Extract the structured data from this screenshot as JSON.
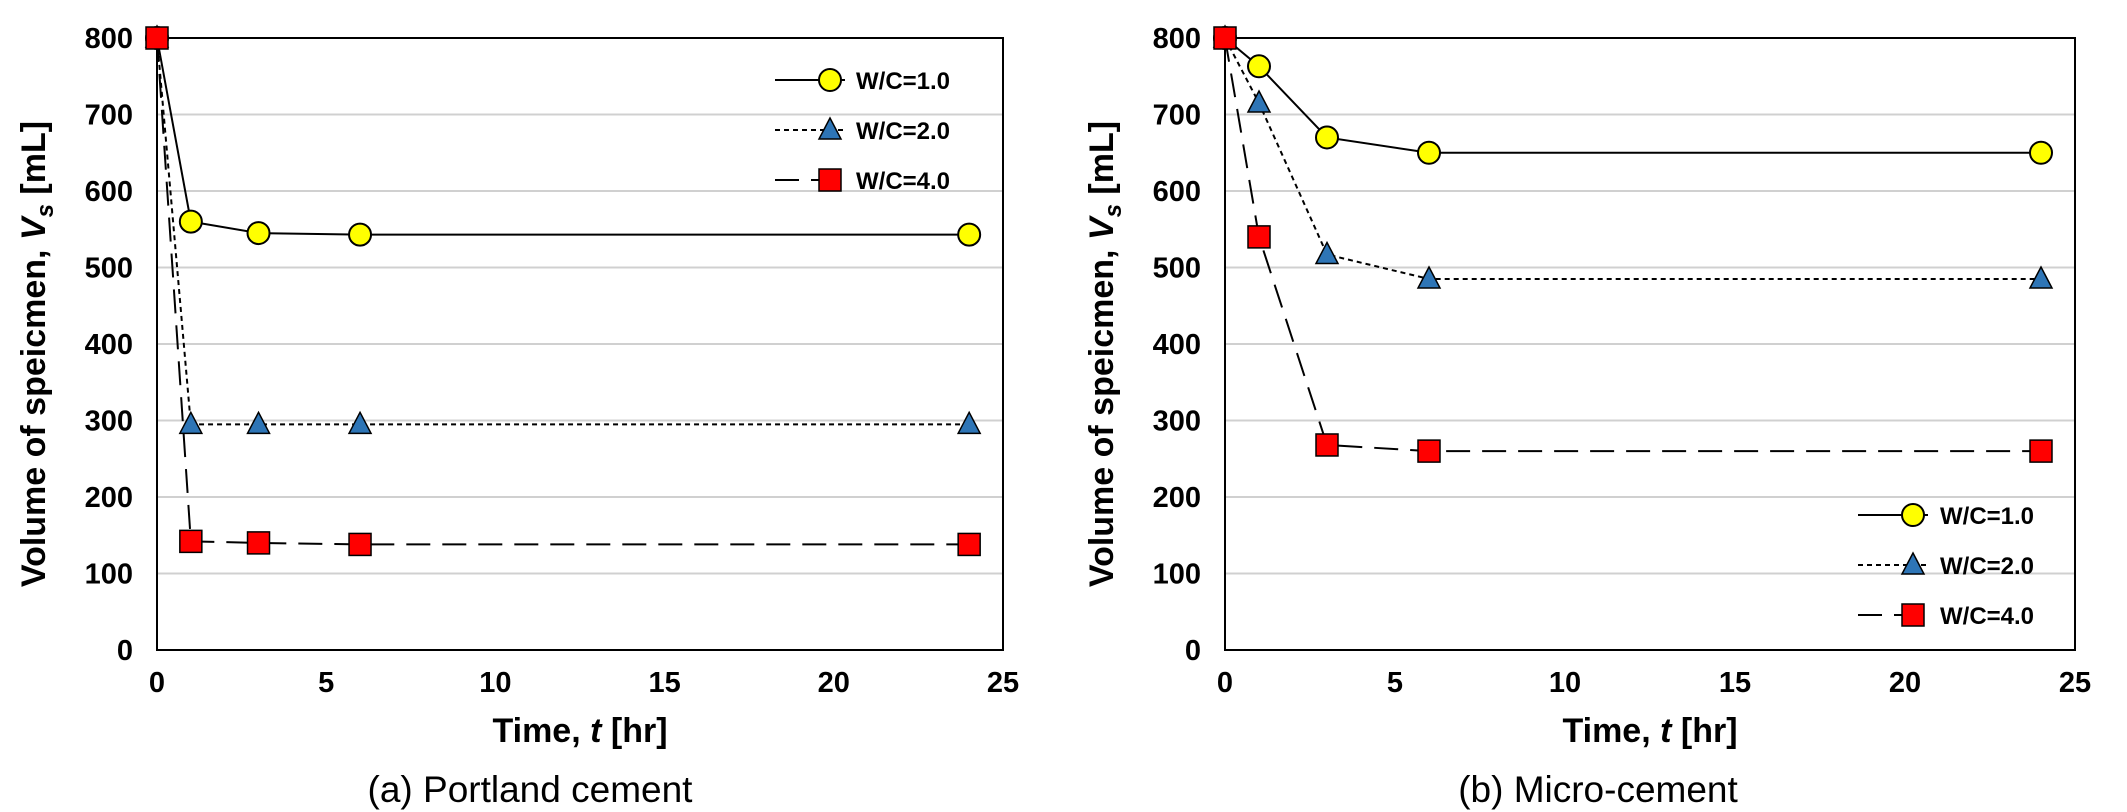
{
  "chart_data": [
    {
      "type": "line",
      "caption": "(a) Portland cement",
      "xlabel_prefix": "Time, ",
      "xlabel_var": "t",
      "xlabel_suffix": " [hr]",
      "ylabel_prefix": "Volume of speicmen, ",
      "ylabel_var": "V",
      "ylabel_sub": "s",
      "ylabel_suffix": " [mL]",
      "xlim": [
        0,
        25
      ],
      "ylim": [
        0,
        800
      ],
      "xticks": [
        0,
        5,
        10,
        15,
        20,
        25
      ],
      "yticks": [
        0,
        100,
        200,
        300,
        400,
        500,
        600,
        700,
        800
      ],
      "grid": "horizontal",
      "legend_position": "top-right",
      "series": [
        {
          "name": "W/C=1.0",
          "marker": "circle",
          "color": "#ffff00",
          "line": "solid",
          "x": [
            0,
            1,
            3,
            6,
            24
          ],
          "y": [
            800,
            560,
            545,
            543,
            543
          ]
        },
        {
          "name": "W/C=2.0",
          "marker": "triangle",
          "color": "#2e75b6",
          "line": "dotted",
          "x": [
            0,
            1,
            3,
            6,
            24
          ],
          "y": [
            800,
            295,
            295,
            295,
            295
          ]
        },
        {
          "name": "W/C=4.0",
          "marker": "square",
          "color": "#ff0000",
          "line": "dashed",
          "x": [
            0,
            1,
            3,
            6,
            24
          ],
          "y": [
            800,
            142,
            140,
            138,
            138
          ]
        }
      ]
    },
    {
      "type": "line",
      "caption": "(b) Micro-cement",
      "xlabel_prefix": "Time, ",
      "xlabel_var": "t",
      "xlabel_suffix": " [hr]",
      "ylabel_prefix": "Volume of speicmen, ",
      "ylabel_var": "V",
      "ylabel_sub": "s",
      "ylabel_suffix": " [mL]",
      "xlim": [
        0,
        25
      ],
      "ylim": [
        0,
        800
      ],
      "xticks": [
        0,
        5,
        10,
        15,
        20,
        25
      ],
      "yticks": [
        0,
        100,
        200,
        300,
        400,
        500,
        600,
        700,
        800
      ],
      "grid": "horizontal",
      "legend_position": "bottom-right",
      "series": [
        {
          "name": "W/C=1.0",
          "marker": "circle",
          "color": "#ffff00",
          "line": "solid",
          "x": [
            0,
            1,
            3,
            6,
            24
          ],
          "y": [
            800,
            763,
            670,
            650,
            650
          ]
        },
        {
          "name": "W/C=2.0",
          "marker": "triangle",
          "color": "#2e75b6",
          "line": "dotted",
          "x": [
            0,
            1,
            3,
            6,
            24
          ],
          "y": [
            800,
            715,
            517,
            485,
            485
          ]
        },
        {
          "name": "W/C=4.0",
          "marker": "square",
          "color": "#ff0000",
          "line": "dashed",
          "x": [
            0,
            1,
            3,
            6,
            24
          ],
          "y": [
            800,
            540,
            268,
            260,
            260
          ]
        }
      ]
    }
  ]
}
